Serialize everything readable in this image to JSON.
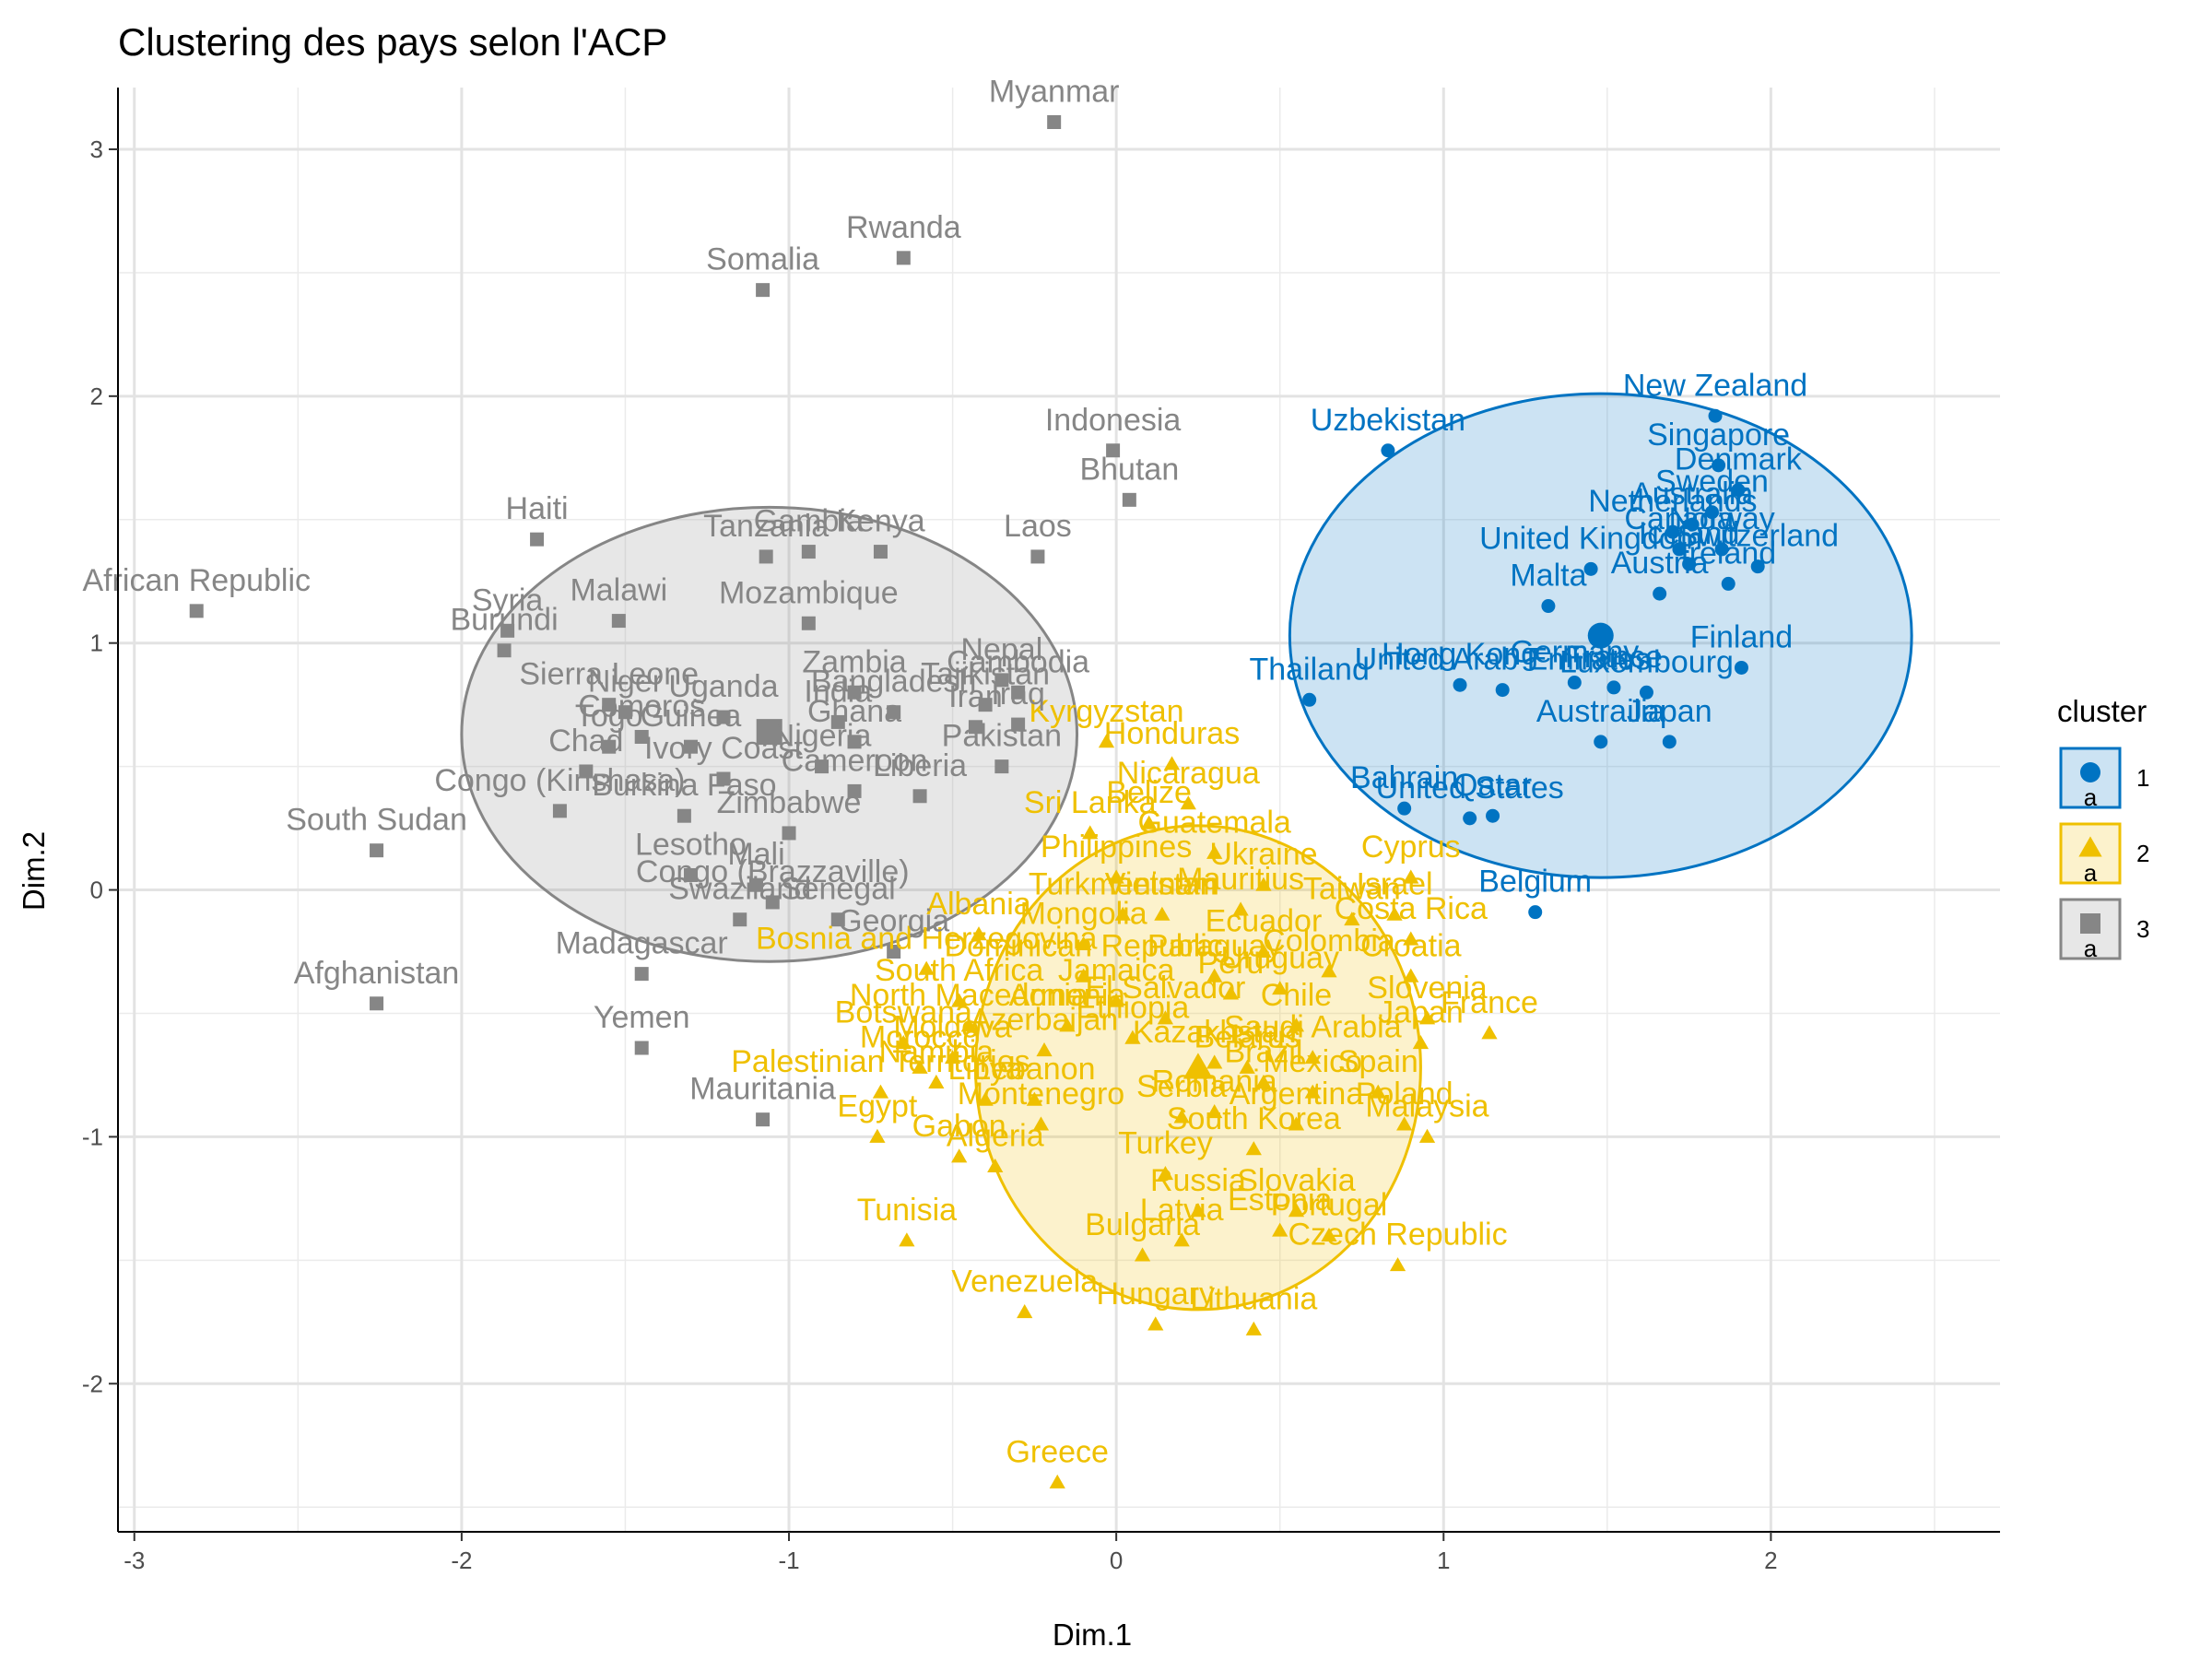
{
  "chart_data": {
    "type": "scatter",
    "title": "Clustering des pays selon l'ACP",
    "xlabel": "Dim.1",
    "ylabel": "Dim.2",
    "xlim": [
      -3.05,
      2.7
    ],
    "ylim": [
      -2.6,
      3.25
    ],
    "xticks": [
      -3,
      -2,
      -1,
      0,
      1,
      2
    ],
    "yticks": [
      -2,
      -1,
      0,
      1,
      2,
      3
    ],
    "grid": true,
    "legend": {
      "title": "cluster",
      "placement": "right"
    },
    "series": [
      {
        "name": "1",
        "color": "#0073C2",
        "marker": "circle",
        "center": [
          1.48,
          1.03
        ],
        "ellipse": {
          "cx": 1.48,
          "cy": 1.03,
          "rx": 0.95,
          "ry": 0.98
        },
        "points": [
          {
            "label": "New Zealand",
            "x": 1.83,
            "y": 1.92
          },
          {
            "label": "Singapore",
            "x": 1.84,
            "y": 1.72
          },
          {
            "label": "Denmark",
            "x": 1.9,
            "y": 1.62
          },
          {
            "label": "Sweden",
            "x": 1.82,
            "y": 1.53
          },
          {
            "label": "Netherlands",
            "x": 1.7,
            "y": 1.45
          },
          {
            "label": "Australia",
            "x": 1.76,
            "y": 1.48
          },
          {
            "label": "Canada",
            "x": 1.72,
            "y": 1.38
          },
          {
            "label": "Norway",
            "x": 1.85,
            "y": 1.38
          },
          {
            "label": "Switzerland",
            "x": 1.96,
            "y": 1.31
          },
          {
            "label": "Iceland",
            "x": 1.75,
            "y": 1.32
          },
          {
            "label": "United Kingdom",
            "x": 1.45,
            "y": 1.3
          },
          {
            "label": "Ireland",
            "x": 1.87,
            "y": 1.24
          },
          {
            "label": "Malta",
            "x": 1.32,
            "y": 1.15
          },
          {
            "label": "Austria",
            "x": 1.66,
            "y": 1.2
          },
          {
            "label": "Uzbekistan",
            "x": 0.83,
            "y": 1.78
          },
          {
            "label": "Finland",
            "x": 1.91,
            "y": 0.9
          },
          {
            "label": "Germany",
            "x": 1.4,
            "y": 0.84
          },
          {
            "label": "France",
            "x": 1.52,
            "y": 0.82
          },
          {
            "label": "Hong Kong",
            "x": 1.05,
            "y": 0.83
          },
          {
            "label": "United Arab Emirates",
            "x": 1.18,
            "y": 0.81
          },
          {
            "label": "Thailand",
            "x": 0.59,
            "y": 0.77
          },
          {
            "label": "Luxembourg",
            "x": 1.62,
            "y": 0.8
          },
          {
            "label": "Austrailia",
            "x": 1.48,
            "y": 0.6
          },
          {
            "label": "Japan",
            "x": 1.69,
            "y": 0.6
          },
          {
            "label": "Bahrain",
            "x": 0.88,
            "y": 0.33
          },
          {
            "label": "United States",
            "x": 1.08,
            "y": 0.29
          },
          {
            "label": "Qatar",
            "x": 1.15,
            "y": 0.3
          },
          {
            "label": "Belgium",
            "x": 1.28,
            "y": -0.09
          }
        ]
      },
      {
        "name": "2",
        "color": "#EFC000",
        "marker": "triangle",
        "center": [
          0.25,
          -0.72
        ],
        "ellipse": {
          "cx": 0.25,
          "cy": -0.72,
          "rx": 0.68,
          "ry": 0.98
        },
        "points": [
          {
            "label": "Kyrgyzstan",
            "x": -0.03,
            "y": 0.6
          },
          {
            "label": "Honduras",
            "x": 0.17,
            "y": 0.51
          },
          {
            "label": "Nicaragua",
            "x": 0.22,
            "y": 0.35
          },
          {
            "label": "Sri Lanka",
            "x": -0.08,
            "y": 0.23
          },
          {
            "label": "Belize",
            "x": 0.1,
            "y": 0.27
          },
          {
            "label": "Guatemala",
            "x": 0.3,
            "y": 0.15
          },
          {
            "label": "Philippines",
            "x": 0.0,
            "y": 0.05
          },
          {
            "label": "Ukraine",
            "x": 0.45,
            "y": 0.02
          },
          {
            "label": "Cyprus",
            "x": 0.9,
            "y": 0.05
          },
          {
            "label": "Vietnam",
            "x": 0.14,
            "y": -0.1
          },
          {
            "label": "Turkmenistan",
            "x": 0.02,
            "y": -0.1
          },
          {
            "label": "Mauritius",
            "x": 0.38,
            "y": -0.08
          },
          {
            "label": "Israel",
            "x": 0.85,
            "y": -0.1
          },
          {
            "label": "Taiwan",
            "x": 0.72,
            "y": -0.12
          },
          {
            "label": "Costa Rica",
            "x": 0.9,
            "y": -0.2
          },
          {
            "label": "Albania",
            "x": -0.42,
            "y": -0.18
          },
          {
            "label": "Mongolia",
            "x": -0.1,
            "y": -0.22
          },
          {
            "label": "Ecuador",
            "x": 0.45,
            "y": -0.25
          },
          {
            "label": "Bosnia and Herzegovina",
            "x": -0.58,
            "y": -0.32
          },
          {
            "label": "Dominican Republic",
            "x": -0.1,
            "y": -0.35
          },
          {
            "label": "Paraguay",
            "x": 0.3,
            "y": -0.35
          },
          {
            "label": "Colombia",
            "x": 0.65,
            "y": -0.33
          },
          {
            "label": "Croatia",
            "x": 0.9,
            "y": -0.35
          },
          {
            "label": "South Africa",
            "x": -0.48,
            "y": -0.45
          },
          {
            "label": "Peru",
            "x": 0.35,
            "y": -0.42
          },
          {
            "label": "Uruguay",
            "x": 0.5,
            "y": -0.4
          },
          {
            "label": "Jamaica",
            "x": 0.0,
            "y": -0.45
          },
          {
            "label": "North Macedonia",
            "x": -0.45,
            "y": -0.55
          },
          {
            "label": "Armenia",
            "x": -0.15,
            "y": -0.55
          },
          {
            "label": "El Salvador",
            "x": 0.15,
            "y": -0.52
          },
          {
            "label": "Chile",
            "x": 0.55,
            "y": -0.55
          },
          {
            "label": "Slovenia",
            "x": 0.95,
            "y": -0.52
          },
          {
            "label": "France",
            "x": 1.14,
            "y": -0.58
          },
          {
            "label": "Azerbaijan",
            "x": -0.22,
            "y": -0.65
          },
          {
            "label": "Ethiopia",
            "x": 0.05,
            "y": -0.6
          },
          {
            "label": "Botswana",
            "x": -0.65,
            "y": -0.62
          },
          {
            "label": "Moldova",
            "x": -0.5,
            "y": -0.68
          },
          {
            "label": "Morocco",
            "x": -0.6,
            "y": -0.72
          },
          {
            "label": "Namibia",
            "x": -0.55,
            "y": -0.78
          },
          {
            "label": "Saudi Arabia",
            "x": 0.6,
            "y": -0.68
          },
          {
            "label": "Belarus",
            "x": 0.4,
            "y": -0.72
          },
          {
            "label": "Kazakhstan",
            "x": 0.3,
            "y": -0.7
          },
          {
            "label": "Japan",
            "x": 0.93,
            "y": -0.62
          },
          {
            "label": "Palestinian Territories",
            "x": -0.72,
            "y": -0.82
          },
          {
            "label": "Libya",
            "x": -0.4,
            "y": -0.85
          },
          {
            "label": "Lebanon",
            "x": -0.25,
            "y": -0.85
          },
          {
            "label": "Brazil",
            "x": 0.45,
            "y": -0.78
          },
          {
            "label": "Mexico",
            "x": 0.6,
            "y": -0.82
          },
          {
            "label": "Spain",
            "x": 0.8,
            "y": -0.82
          },
          {
            "label": "Egypt",
            "x": -0.73,
            "y": -1.0
          },
          {
            "label": "Montenegro",
            "x": -0.23,
            "y": -0.95
          },
          {
            "label": "Serbia",
            "x": 0.2,
            "y": -0.92
          },
          {
            "label": "Argentina",
            "x": 0.55,
            "y": -0.95
          },
          {
            "label": "Romania",
            "x": 0.3,
            "y": -0.9
          },
          {
            "label": "South Korea",
            "x": 0.42,
            "y": -1.05
          },
          {
            "label": "Poland",
            "x": 0.88,
            "y": -0.95
          },
          {
            "label": "Malaysia",
            "x": 0.95,
            "y": -1.0
          },
          {
            "label": "Gabon",
            "x": -0.48,
            "y": -1.08
          },
          {
            "label": "Algeria",
            "x": -0.37,
            "y": -1.12
          },
          {
            "label": "Turkey",
            "x": 0.15,
            "y": -1.15
          },
          {
            "label": "Tunisia",
            "x": -0.64,
            "y": -1.42
          },
          {
            "label": "Russia",
            "x": 0.25,
            "y": -1.3
          },
          {
            "label": "Slovakia",
            "x": 0.55,
            "y": -1.3
          },
          {
            "label": "Portugal",
            "x": 0.65,
            "y": -1.4
          },
          {
            "label": "Latvia",
            "x": 0.2,
            "y": -1.42
          },
          {
            "label": "Estonia",
            "x": 0.5,
            "y": -1.38
          },
          {
            "label": "Czech Republic",
            "x": 0.86,
            "y": -1.52
          },
          {
            "label": "Bulgaria",
            "x": 0.08,
            "y": -1.48
          },
          {
            "label": "Venezuela",
            "x": -0.28,
            "y": -1.71
          },
          {
            "label": "Hungary",
            "x": 0.12,
            "y": -1.76
          },
          {
            "label": "Lithuania",
            "x": 0.42,
            "y": -1.78
          },
          {
            "label": "Greece",
            "x": -0.18,
            "y": -2.4
          }
        ]
      },
      {
        "name": "3",
        "color": "#868686",
        "marker": "square",
        "center": [
          -1.06,
          0.64
        ],
        "ellipse": {
          "cx": -1.06,
          "cy": 0.63,
          "rx": 0.94,
          "ry": 0.92
        },
        "points": [
          {
            "label": "Myanmar",
            "x": -0.19,
            "y": 3.11
          },
          {
            "label": "Rwanda",
            "x": -0.65,
            "y": 2.56
          },
          {
            "label": "Somalia",
            "x": -1.08,
            "y": 2.43
          },
          {
            "label": "Indonesia",
            "x": -0.01,
            "y": 1.78
          },
          {
            "label": "Bhutan",
            "x": 0.04,
            "y": 1.58
          },
          {
            "label": "Haiti",
            "x": -1.77,
            "y": 1.42
          },
          {
            "label": "Tanzania",
            "x": -1.07,
            "y": 1.35
          },
          {
            "label": "Gambia",
            "x": -0.94,
            "y": 1.37
          },
          {
            "label": "Kenya",
            "x": -0.72,
            "y": 1.37
          },
          {
            "label": "Laos",
            "x": -0.24,
            "y": 1.35
          },
          {
            "label": "African Republic",
            "x": -2.81,
            "y": 1.13
          },
          {
            "label": "Syria",
            "x": -1.86,
            "y": 1.05
          },
          {
            "label": "Burundi",
            "x": -1.87,
            "y": 0.97
          },
          {
            "label": "Malawi",
            "x": -1.52,
            "y": 1.09
          },
          {
            "label": "Mozambique",
            "x": -0.94,
            "y": 1.08
          },
          {
            "label": "Nepal",
            "x": -0.35,
            "y": 0.85
          },
          {
            "label": "Zambia",
            "x": -0.8,
            "y": 0.8
          },
          {
            "label": "Cambodia",
            "x": -0.3,
            "y": 0.8
          },
          {
            "label": "Bangladesh",
            "x": -0.68,
            "y": 0.72
          },
          {
            "label": "Tajikistan",
            "x": -0.4,
            "y": 0.75
          },
          {
            "label": "Sierra Leone",
            "x": -1.55,
            "y": 0.75
          },
          {
            "label": "Niger",
            "x": -1.5,
            "y": 0.72
          },
          {
            "label": "Uganda",
            "x": -1.2,
            "y": 0.7
          },
          {
            "label": "India",
            "x": -0.85,
            "y": 0.68
          },
          {
            "label": "Comoros",
            "x": -1.45,
            "y": 0.62
          },
          {
            "label": "Guinea",
            "x": -1.3,
            "y": 0.58
          },
          {
            "label": "Ghana",
            "x": -0.8,
            "y": 0.6
          },
          {
            "label": "Iran",
            "x": -0.43,
            "y": 0.66
          },
          {
            "label": "Iraq",
            "x": -0.3,
            "y": 0.67
          },
          {
            "label": "Togo",
            "x": -1.55,
            "y": 0.58
          },
          {
            "label": "Nigeria",
            "x": -0.9,
            "y": 0.5
          },
          {
            "label": "Pakistan",
            "x": -0.35,
            "y": 0.5
          },
          {
            "label": "Chad",
            "x": -1.62,
            "y": 0.48
          },
          {
            "label": "Ivory Coast",
            "x": -1.2,
            "y": 0.45
          },
          {
            "label": "Congo (Kinshasa)",
            "x": -1.7,
            "y": 0.32
          },
          {
            "label": "Burkina Faso",
            "x": -1.32,
            "y": 0.3
          },
          {
            "label": "Cameroon",
            "x": -0.8,
            "y": 0.4
          },
          {
            "label": "Liberia",
            "x": -0.6,
            "y": 0.38
          },
          {
            "label": "Zimbabwe",
            "x": -1.0,
            "y": 0.23
          },
          {
            "label": "South Sudan",
            "x": -2.26,
            "y": 0.16
          },
          {
            "label": "Lesotho",
            "x": -1.3,
            "y": 0.06
          },
          {
            "label": "Mali",
            "x": -1.1,
            "y": 0.02
          },
          {
            "label": "Congo (Brazzaville)",
            "x": -1.05,
            "y": -0.05
          },
          {
            "label": "Swaziland",
            "x": -1.15,
            "y": -0.12
          },
          {
            "label": "Senegal",
            "x": -0.85,
            "y": -0.12
          },
          {
            "label": "Madagascar",
            "x": -1.45,
            "y": -0.34
          },
          {
            "label": "Georgia",
            "x": -0.68,
            "y": -0.25
          },
          {
            "label": "Afghanistan",
            "x": -2.26,
            "y": -0.46
          },
          {
            "label": "Yemen",
            "x": -1.45,
            "y": -0.64
          },
          {
            "label": "Mauritania",
            "x": -1.08,
            "y": -0.93
          }
        ]
      }
    ]
  }
}
